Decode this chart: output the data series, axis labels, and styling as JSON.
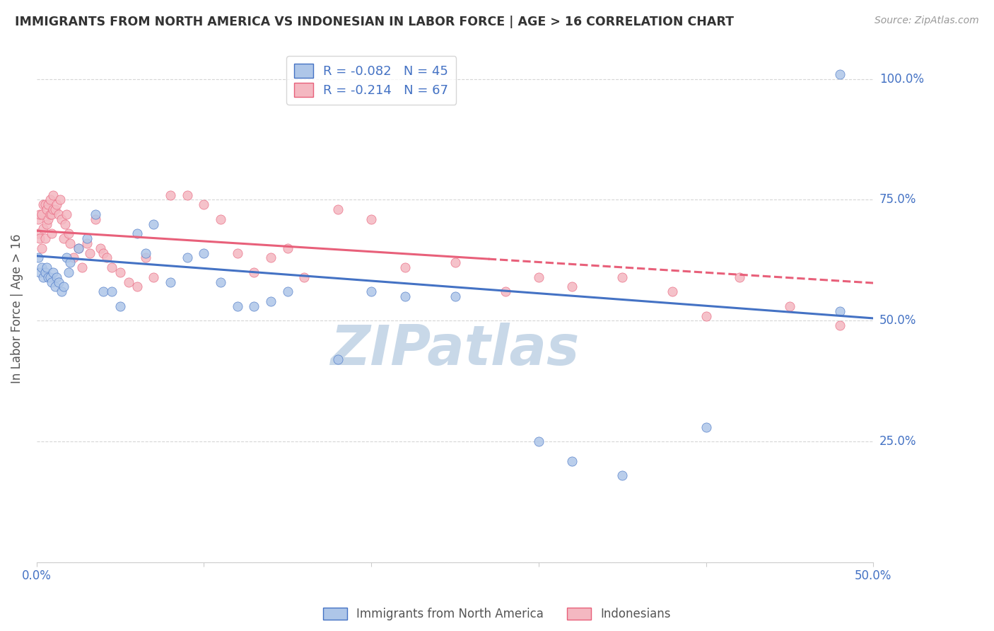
{
  "title": "IMMIGRANTS FROM NORTH AMERICA VS INDONESIAN IN LABOR FORCE | AGE > 16 CORRELATION CHART",
  "source": "Source: ZipAtlas.com",
  "ylabel": "In Labor Force | Age > 16",
  "legend_label1": "Immigrants from North America",
  "legend_label2": "Indonesians",
  "R1": -0.082,
  "N1": 45,
  "R2": -0.214,
  "N2": 67,
  "color1": "#aec6e8",
  "color2": "#f4b8c1",
  "line_color1": "#4472c4",
  "line_color2": "#e8607a",
  "background_color": "#ffffff",
  "grid_color": "#cccccc",
  "watermark": "ZIPatlas",
  "watermark_color": "#c8d8e8",
  "title_color": "#333333",
  "source_color": "#999999",
  "tick_label_color": "#4472c4",
  "xlim": [
    0.0,
    0.5
  ],
  "ylim": [
    0.0,
    1.05
  ],
  "blue_x": [
    0.001,
    0.002,
    0.003,
    0.004,
    0.005,
    0.006,
    0.007,
    0.008,
    0.009,
    0.01,
    0.011,
    0.012,
    0.013,
    0.015,
    0.016,
    0.018,
    0.019,
    0.02,
    0.025,
    0.03,
    0.035,
    0.04,
    0.045,
    0.05,
    0.06,
    0.065,
    0.07,
    0.08,
    0.09,
    0.1,
    0.11,
    0.12,
    0.13,
    0.14,
    0.15,
    0.18,
    0.2,
    0.22,
    0.25,
    0.3,
    0.32,
    0.35,
    0.4,
    0.48,
    0.48
  ],
  "blue_y": [
    0.63,
    0.6,
    0.61,
    0.59,
    0.6,
    0.61,
    0.59,
    0.59,
    0.58,
    0.6,
    0.57,
    0.59,
    0.58,
    0.56,
    0.57,
    0.63,
    0.6,
    0.62,
    0.65,
    0.67,
    0.72,
    0.56,
    0.56,
    0.53,
    0.68,
    0.64,
    0.7,
    0.58,
    0.63,
    0.64,
    0.58,
    0.53,
    0.53,
    0.54,
    0.56,
    0.42,
    0.56,
    0.55,
    0.55,
    0.25,
    0.21,
    0.18,
    0.28,
    0.52,
    1.01
  ],
  "pink_x": [
    0.001,
    0.001,
    0.002,
    0.002,
    0.003,
    0.003,
    0.004,
    0.004,
    0.005,
    0.005,
    0.006,
    0.006,
    0.007,
    0.007,
    0.008,
    0.008,
    0.009,
    0.009,
    0.01,
    0.01,
    0.011,
    0.012,
    0.013,
    0.014,
    0.015,
    0.016,
    0.017,
    0.018,
    0.019,
    0.02,
    0.022,
    0.025,
    0.027,
    0.03,
    0.032,
    0.035,
    0.038,
    0.04,
    0.042,
    0.045,
    0.05,
    0.055,
    0.06,
    0.065,
    0.07,
    0.08,
    0.09,
    0.1,
    0.11,
    0.12,
    0.13,
    0.14,
    0.15,
    0.16,
    0.18,
    0.2,
    0.22,
    0.25,
    0.28,
    0.3,
    0.32,
    0.35,
    0.38,
    0.4,
    0.42,
    0.45,
    0.48
  ],
  "pink_y": [
    0.68,
    0.71,
    0.67,
    0.72,
    0.65,
    0.72,
    0.69,
    0.74,
    0.67,
    0.74,
    0.7,
    0.73,
    0.71,
    0.74,
    0.72,
    0.75,
    0.68,
    0.72,
    0.73,
    0.76,
    0.73,
    0.74,
    0.72,
    0.75,
    0.71,
    0.67,
    0.7,
    0.72,
    0.68,
    0.66,
    0.63,
    0.65,
    0.61,
    0.66,
    0.64,
    0.71,
    0.65,
    0.64,
    0.63,
    0.61,
    0.6,
    0.58,
    0.57,
    0.63,
    0.59,
    0.76,
    0.76,
    0.74,
    0.71,
    0.64,
    0.6,
    0.63,
    0.65,
    0.59,
    0.73,
    0.71,
    0.61,
    0.62,
    0.56,
    0.59,
    0.57,
    0.59,
    0.56,
    0.51,
    0.59,
    0.53,
    0.49
  ],
  "blue_line_x0": 0.0,
  "blue_line_x1": 0.5,
  "blue_line_y0": 0.634,
  "blue_line_y1": 0.505,
  "pink_line_solid_x0": 0.0,
  "pink_line_solid_x1": 0.27,
  "pink_line_dashed_x0": 0.27,
  "pink_line_dashed_x1": 0.5,
  "pink_line_y0": 0.686,
  "pink_line_y1": 0.578
}
